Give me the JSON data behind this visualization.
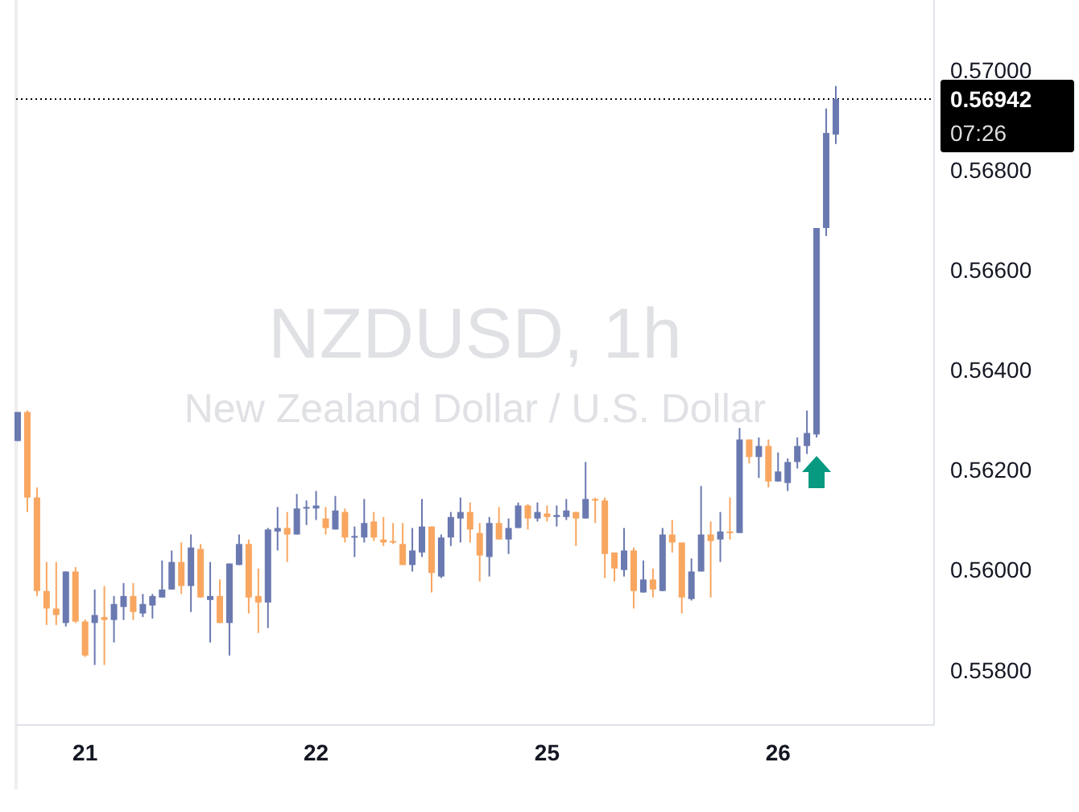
{
  "chart_data": {
    "type": "candlestick",
    "title": "NZDUSD, 1h",
    "subtitle": "New Zealand Dollar / U.S. Dollar",
    "categories": [
      null,
      null,
      null,
      null,
      null,
      null,
      null,
      "21",
      null,
      null,
      null,
      null,
      null,
      null,
      null,
      null,
      null,
      null,
      null,
      null,
      null,
      null,
      null,
      null,
      null,
      null,
      null,
      null,
      null,
      null,
      null,
      "22",
      null,
      null,
      null,
      null,
      null,
      null,
      null,
      null,
      null,
      null,
      null,
      null,
      null,
      null,
      null,
      null,
      null,
      null,
      null,
      null,
      null,
      null,
      null,
      "25",
      null,
      null,
      null,
      null,
      null,
      null,
      null,
      null,
      null,
      null,
      null,
      null,
      null,
      null,
      null,
      null,
      null,
      null,
      null,
      null,
      null,
      null,
      null,
      "26",
      null,
      null,
      null,
      null,
      null,
      null
    ],
    "ohlc": [
      [
        0.56258,
        0.56316,
        0.56258,
        0.56316
      ],
      [
        0.56316,
        0.56319,
        0.56116,
        0.56145
      ],
      [
        0.56145,
        0.56165,
        0.55948,
        0.55958
      ],
      [
        0.55958,
        0.56016,
        0.5589,
        0.55923
      ],
      [
        0.55923,
        0.56016,
        0.5589,
        0.5591
      ],
      [
        0.55894,
        0.55997,
        0.55887,
        0.55997
      ],
      [
        0.55997,
        0.56006,
        0.55894,
        0.55897
      ],
      [
        0.55897,
        0.55901,
        0.55826,
        0.55829
      ],
      [
        0.55894,
        0.55961,
        0.5581,
        0.5591
      ],
      [
        0.55906,
        0.55968,
        0.5581,
        0.559
      ],
      [
        0.559,
        0.55948,
        0.55855,
        0.55932
      ],
      [
        0.55926,
        0.55974,
        0.559,
        0.55948
      ],
      [
        0.55948,
        0.55974,
        0.559,
        0.55916
      ],
      [
        0.55913,
        0.55952,
        0.55906,
        0.55932
      ],
      [
        0.55929,
        0.55952,
        0.55903,
        0.55948
      ],
      [
        0.55945,
        0.56019,
        0.55945,
        0.55961
      ],
      [
        0.55961,
        0.56039,
        0.55961,
        0.56016
      ],
      [
        0.56016,
        0.56055,
        0.55952,
        0.55968
      ],
      [
        0.55968,
        0.56071,
        0.55916,
        0.56045
      ],
      [
        0.56042,
        0.56052,
        0.55945,
        0.55945
      ],
      [
        0.5594,
        0.56016,
        0.55855,
        0.55948
      ],
      [
        0.55948,
        0.55981,
        0.55894,
        0.55894
      ],
      [
        0.55894,
        0.56013,
        0.55829,
        0.56013
      ],
      [
        0.5601,
        0.56071,
        0.5601,
        0.56052
      ],
      [
        0.56052,
        0.56061,
        0.55913,
        0.55945
      ],
      [
        0.55948,
        0.56003,
        0.55874,
        0.55935
      ],
      [
        0.55935,
        0.56084,
        0.55884,
        0.56081
      ],
      [
        0.56077,
        0.56126,
        0.56039,
        0.56084
      ],
      [
        0.56084,
        0.56116,
        0.56016,
        0.56071
      ],
      [
        0.56071,
        0.56152,
        0.56071,
        0.56123
      ],
      [
        0.56123,
        0.56139,
        0.5609,
        0.56126
      ],
      [
        0.56123,
        0.56158,
        0.561,
        0.56129
      ],
      [
        0.56103,
        0.56126,
        0.56071,
        0.56084
      ],
      [
        0.56081,
        0.56148,
        0.56081,
        0.56119
      ],
      [
        0.56116,
        0.56123,
        0.56055,
        0.56065
      ],
      [
        0.56065,
        0.56087,
        0.56026,
        0.56068
      ],
      [
        0.56065,
        0.56142,
        0.56055,
        0.56094
      ],
      [
        0.56097,
        0.56116,
        0.56058,
        0.56065
      ],
      [
        0.56061,
        0.56106,
        0.56048,
        0.56055
      ],
      [
        0.56058,
        0.56094,
        0.56052,
        0.56055
      ],
      [
        0.56052,
        0.56094,
        0.5601,
        0.5601
      ],
      [
        0.5601,
        0.56084,
        0.55997,
        0.56039
      ],
      [
        0.56035,
        0.56142,
        0.56026,
        0.56087
      ],
      [
        0.56087,
        0.56087,
        0.55955,
        0.55994
      ],
      [
        0.55987,
        0.56071,
        0.55984,
        0.56065
      ],
      [
        0.56065,
        0.56116,
        0.56048,
        0.56106
      ],
      [
        0.56103,
        0.56145,
        0.56055,
        0.56116
      ],
      [
        0.56116,
        0.56135,
        0.56055,
        0.56081
      ],
      [
        0.56074,
        0.56094,
        0.55977,
        0.56029
      ],
      [
        0.56026,
        0.56106,
        0.55987,
        0.56094
      ],
      [
        0.56094,
        0.56126,
        0.56061,
        0.56061
      ],
      [
        0.56061,
        0.56103,
        0.56032,
        0.56084
      ],
      [
        0.56084,
        0.56135,
        0.56084,
        0.56129
      ],
      [
        0.56129,
        0.56132,
        0.56081,
        0.56103
      ],
      [
        0.56103,
        0.56135,
        0.56097,
        0.56116
      ],
      [
        0.56113,
        0.56129,
        0.56097,
        0.56106
      ],
      [
        0.56106,
        0.56129,
        0.56087,
        0.5611
      ],
      [
        0.56106,
        0.56142,
        0.561,
        0.56119
      ],
      [
        0.56116,
        0.56116,
        0.56048,
        0.56103
      ],
      [
        0.56103,
        0.56216,
        0.56103,
        0.56142
      ],
      [
        0.56142,
        0.56145,
        0.56094,
        0.56139
      ],
      [
        0.56139,
        0.56145,
        0.55984,
        0.56032
      ],
      [
        0.56035,
        0.56035,
        0.55977,
        0.56003
      ],
      [
        0.56,
        0.56084,
        0.55987,
        0.56039
      ],
      [
        0.56039,
        0.56045,
        0.55923,
        0.55958
      ],
      [
        0.55955,
        0.56019,
        0.55955,
        0.55981
      ],
      [
        0.55981,
        0.56003,
        0.55945,
        0.55961
      ],
      [
        0.55958,
        0.56084,
        0.55958,
        0.56071
      ],
      [
        0.56071,
        0.561,
        0.56035,
        0.56055
      ],
      [
        0.56055,
        0.56055,
        0.55913,
        0.55945
      ],
      [
        0.55942,
        0.56023,
        0.55939,
        0.55997
      ],
      [
        0.55997,
        0.56168,
        0.55997,
        0.56071
      ],
      [
        0.56071,
        0.56097,
        0.55945,
        0.56058
      ],
      [
        0.56061,
        0.56116,
        0.56016,
        0.56077
      ],
      [
        0.56077,
        0.56145,
        0.56061,
        0.56074
      ],
      [
        0.56074,
        0.56284,
        0.56074,
        0.56261
      ],
      [
        0.56261,
        0.56261,
        0.56213,
        0.56226
      ],
      [
        0.56226,
        0.56265,
        0.56184,
        0.56248
      ],
      [
        0.56248,
        0.56261,
        0.56165,
        0.56177
      ],
      [
        0.56177,
        0.56235,
        0.56177,
        0.56197
      ],
      [
        0.56174,
        0.56223,
        0.56158,
        0.56216
      ],
      [
        0.56216,
        0.56265,
        0.56203,
        0.56248
      ],
      [
        0.56248,
        0.56319,
        0.56232,
        0.56274
      ],
      [
        0.56271,
        0.56684,
        0.56265,
        0.56684
      ],
      [
        0.56684,
        0.56923,
        0.56668,
        0.56874
      ],
      [
        0.56871,
        0.56968,
        0.56852,
        0.56942
      ]
    ],
    "colors": [
      "#6a79b0",
      "#f8a660",
      "#f8a660",
      "#f8a660",
      "#f8a660",
      "#6a79b0",
      "#f8a660",
      "#f8a660",
      "#6a79b0",
      "#f8a660",
      "#6a79b0",
      "#6a79b0",
      "#f8a660",
      "#6a79b0",
      "#6a79b0",
      "#6a79b0",
      "#6a79b0",
      "#f8a660",
      "#6a79b0",
      "#f8a660",
      "#6a79b0",
      "#f8a660",
      "#6a79b0",
      "#6a79b0",
      "#f8a660",
      "#f8a660",
      "#6a79b0",
      "#6a79b0",
      "#f8a660",
      "#6a79b0",
      "#6a79b0",
      "#6a79b0",
      "#f8a660",
      "#6a79b0",
      "#f8a660",
      "#6a79b0",
      "#6a79b0",
      "#f8a660",
      "#f8a660",
      "#f8a660",
      "#f8a660",
      "#6a79b0",
      "#6a79b0",
      "#f8a660",
      "#6a79b0",
      "#6a79b0",
      "#6a79b0",
      "#f8a660",
      "#f8a660",
      "#6a79b0",
      "#f8a660",
      "#6a79b0",
      "#6a79b0",
      "#f8a660",
      "#6a79b0",
      "#f8a660",
      "#6a79b0",
      "#6a79b0",
      "#f8a660",
      "#6a79b0",
      "#f8a660",
      "#f8a660",
      "#f8a660",
      "#6a79b0",
      "#f8a660",
      "#6a79b0",
      "#f8a660",
      "#6a79b0",
      "#f8a660",
      "#f8a660",
      "#6a79b0",
      "#6a79b0",
      "#f8a660",
      "#6a79b0",
      "#f8a660",
      "#6a79b0",
      "#f8a660",
      "#6a79b0",
      "#f8a660",
      "#6a79b0",
      "#6a79b0",
      "#6a79b0",
      "#6a79b0",
      "#6a79b0",
      "#6a79b0",
      "#6a79b0"
    ],
    "ylim": [
      0.5569,
      0.5714
    ],
    "yticks": [
      {
        "value": 0.558,
        "label": "0.55800"
      },
      {
        "value": 0.56,
        "label": "0.56000"
      },
      {
        "value": 0.562,
        "label": "0.56200"
      },
      {
        "value": 0.564,
        "label": "0.56400"
      },
      {
        "value": 0.566,
        "label": "0.56600"
      },
      {
        "value": 0.568,
        "label": "0.56800"
      },
      {
        "value": 0.57,
        "label": "0.57000"
      }
    ],
    "ref_lines": [
      {
        "axis": "y",
        "value": 0.56942,
        "label": "0.56942",
        "color": "#000000",
        "line_style": "dotted"
      }
    ],
    "annotations": [
      "07:26"
    ],
    "grid": false
  }
}
